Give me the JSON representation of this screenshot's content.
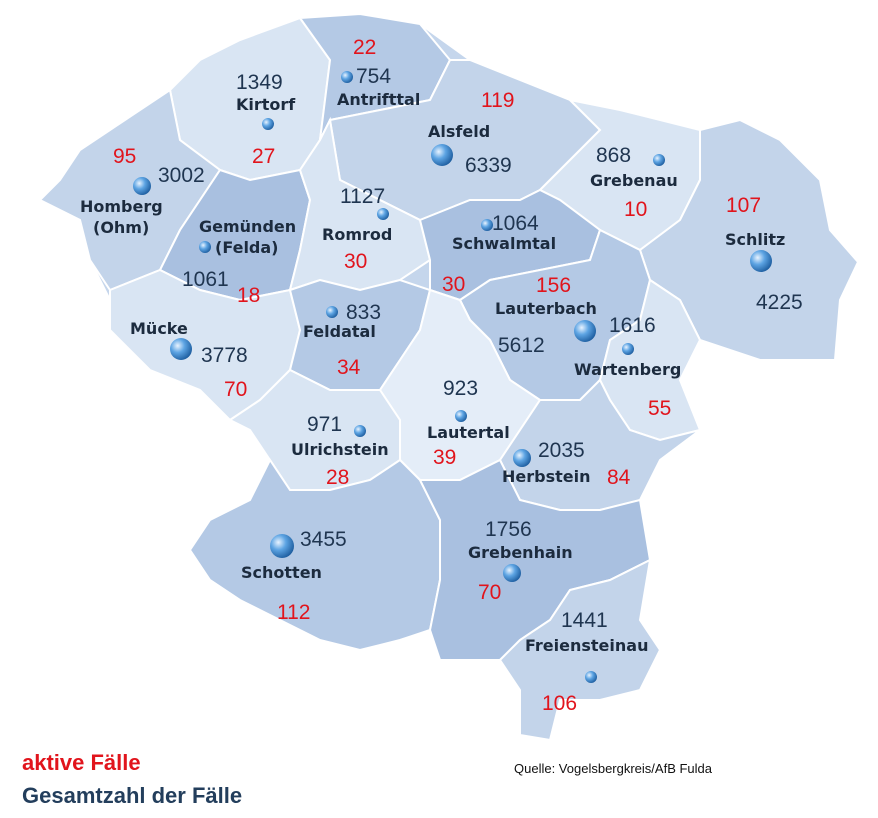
{
  "colors": {
    "active": "#e1141c",
    "total": "#1f3550",
    "region_light": "#d9e5f3",
    "region_mid": "#c3d4ea",
    "region_dark": "#a9c0e0",
    "region_darker": "#94b0d6",
    "marker": "#3b86cf"
  },
  "municipalities": [
    {
      "name": "Kirtorf",
      "total": "1349",
      "active": "27"
    },
    {
      "name": "Antrifttal",
      "total": "754",
      "active": "22"
    },
    {
      "name": "Alsfeld",
      "total": "6339",
      "active": "119"
    },
    {
      "name": "Grebenau",
      "total": "868",
      "active": "10"
    },
    {
      "name": "Homberg (Ohm)",
      "name_line1": "Homberg",
      "name_line2": "(Ohm)",
      "total": "3002",
      "active": "95"
    },
    {
      "name": "Gemünden (Felda)",
      "name_line1": "Gemünden",
      "name_line2": "(Felda)",
      "total": "1061",
      "active": "18"
    },
    {
      "name": "Romrod",
      "total": "1127",
      "active": "30"
    },
    {
      "name": "Schwalmtal",
      "total": "1064",
      "active": "30"
    },
    {
      "name": "Schlitz",
      "total": "4225",
      "active": "107"
    },
    {
      "name": "Lauterbach",
      "total": "5612",
      "active": "156"
    },
    {
      "name": "Mücke",
      "total": "3778",
      "active": "70"
    },
    {
      "name": "Feldatal",
      "total": "833",
      "active": "34"
    },
    {
      "name": "Wartenberg",
      "total": "1616",
      "active": "55"
    },
    {
      "name": "Lautertal",
      "total": "923",
      "active": "39"
    },
    {
      "name": "Ulrichstein",
      "total": "971",
      "active": "28"
    },
    {
      "name": "Herbstein",
      "total": "2035",
      "active": "84"
    },
    {
      "name": "Schotten",
      "total": "3455",
      "active": "112"
    },
    {
      "name": "Grebenhain",
      "total": "1756",
      "active": "70"
    },
    {
      "name": "Freiensteinau",
      "total": "1441",
      "active": "106"
    }
  ],
  "legend": {
    "active_label": "aktive Fälle",
    "total_label": "Gesamtzahl der Fälle"
  },
  "source": "Quelle: Vogelsbergkreis/AfB Fulda"
}
